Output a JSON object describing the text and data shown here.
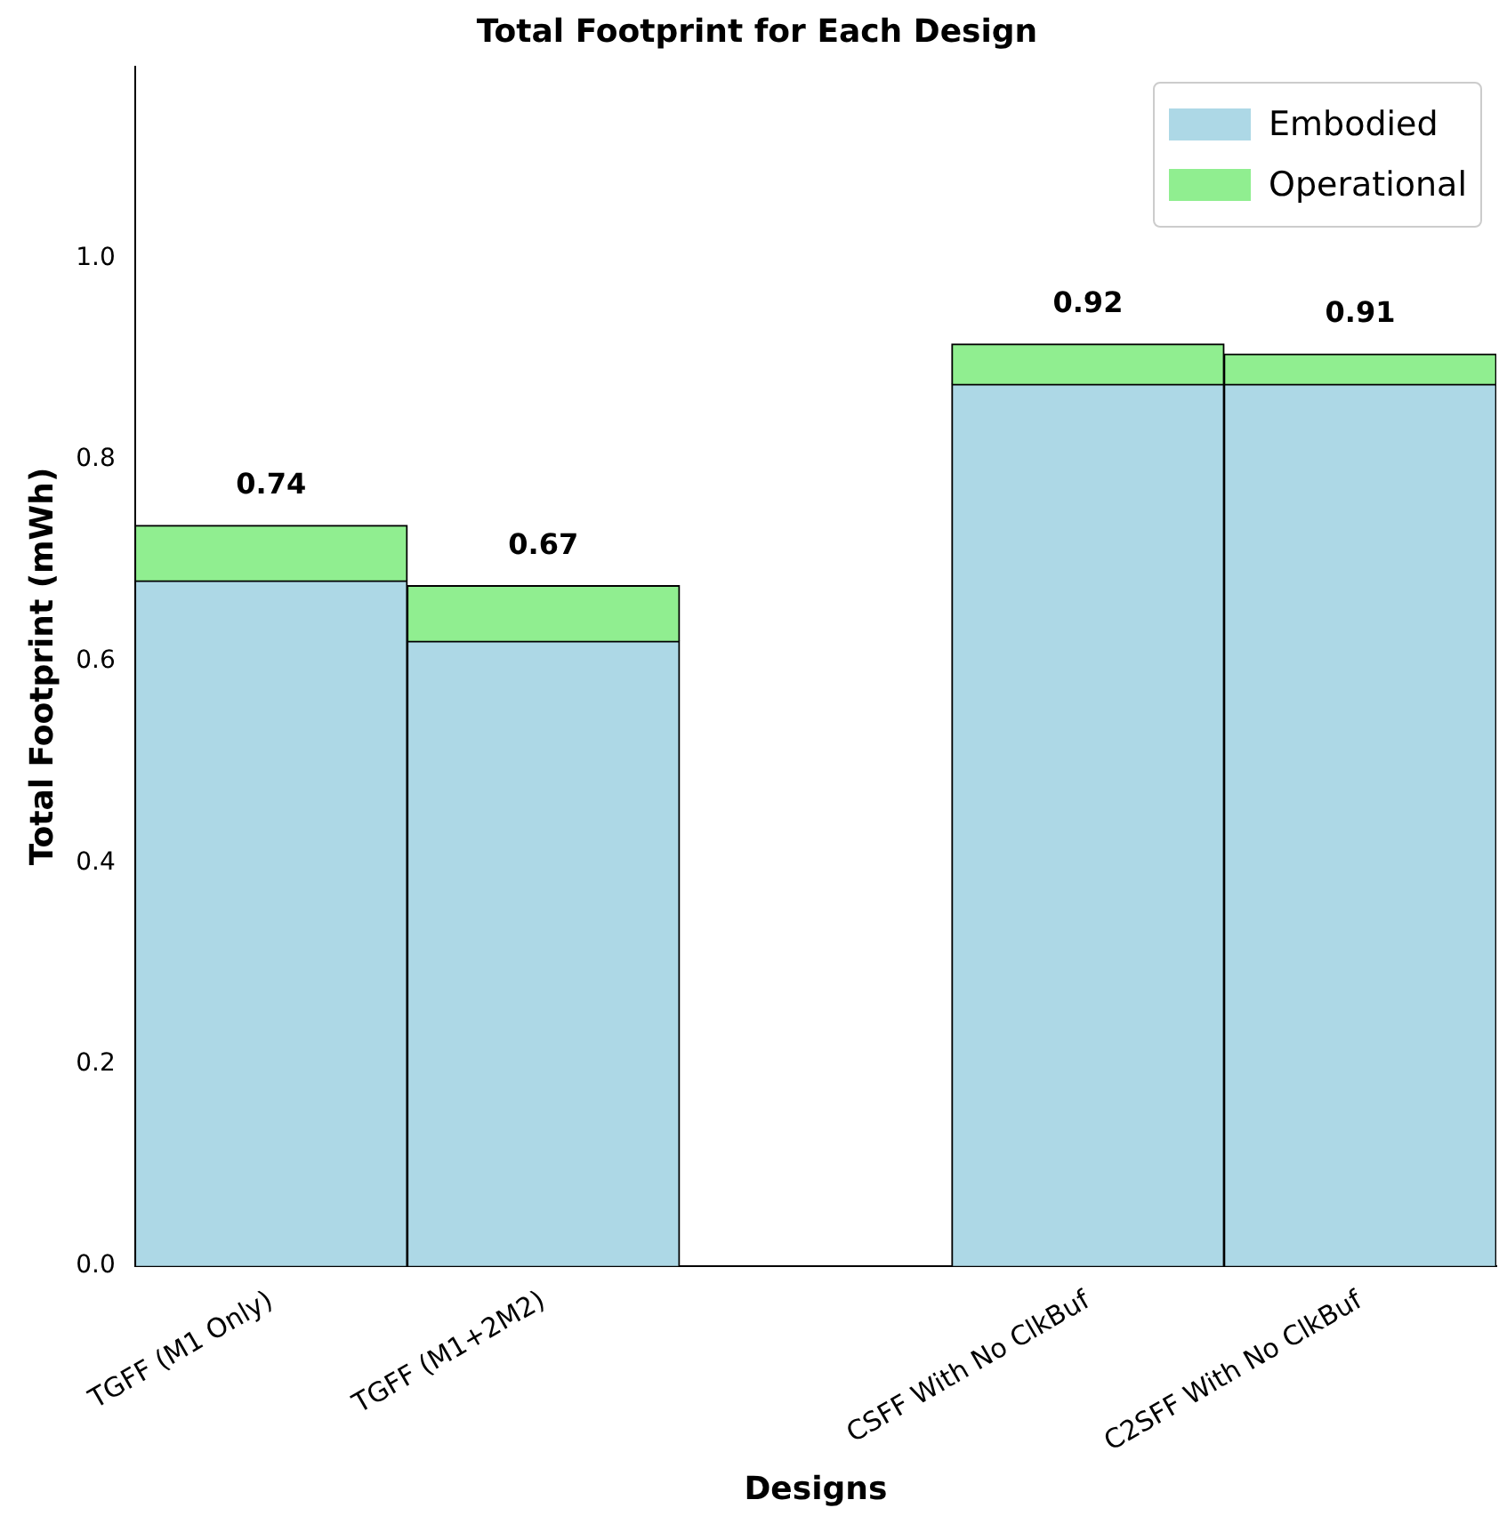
{
  "chart_data": {
    "type": "bar",
    "title": "Total Footprint for Each Design",
    "xlabel": "Designs",
    "ylabel": "Total Footprint (mWh)",
    "categories": [
      "TGFF (M1 Only)",
      "TGFF (M1+2M2)",
      null,
      "CSFF With No ClkBuf",
      "C2SFF With No ClkBuf"
    ],
    "stacked": true,
    "series": [
      {
        "name": "Embodied",
        "color": "#add8e6",
        "values": [
          0.68,
          0.62,
          null,
          0.875,
          0.875
        ]
      },
      {
        "name": "Operational",
        "color": "#90ee90",
        "values": [
          0.055,
          0.055,
          null,
          0.04,
          0.03
        ]
      }
    ],
    "totals": [
      "0.74",
      "0.67",
      null,
      "0.92",
      "0.91"
    ],
    "ylim": [
      0,
      1.19
    ],
    "yticks": [
      {
        "value": 0,
        "label": "0.0"
      },
      0.2,
      0.4,
      0.6,
      0.8,
      {
        "value": 1,
        "label": "1.0"
      }
    ],
    "grid": false,
    "legend": "top right"
  }
}
